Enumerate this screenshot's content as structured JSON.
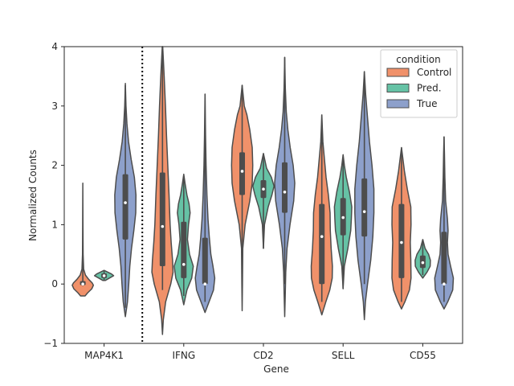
{
  "chart_data": {
    "type": "violin",
    "xlabel": "Gene",
    "ylabel": "Normalized Counts",
    "ylim": [
      -1,
      4
    ],
    "yticks": [
      -1,
      0,
      1,
      2,
      3,
      4
    ],
    "categories": [
      "MAP4K1",
      "IFNG",
      "CD2",
      "SELL",
      "CD55"
    ],
    "separator_after_category": "MAP4K1",
    "legend": {
      "title": "condition",
      "placement": "top-right",
      "entries": [
        "Control",
        "Pred.",
        "True"
      ]
    },
    "series": [
      {
        "name": "Control",
        "color": "#f0916a",
        "violins": [
          {
            "category": "MAP4K1",
            "min": -0.2,
            "max": 1.7,
            "q1": -0.02,
            "median": 0.0,
            "q3": 0.05,
            "whisker_low": -0.03,
            "whisker_high": 0.65,
            "profile": [
              [
                -0.2,
                0.22
              ],
              [
                -0.15,
                0.45
              ],
              [
                -0.08,
                0.85
              ],
              [
                -0.02,
                1.0
              ],
              [
                0.02,
                0.88
              ],
              [
                0.08,
                0.55
              ],
              [
                0.15,
                0.25
              ],
              [
                0.25,
                0.08
              ],
              [
                0.5,
                0.03
              ],
              [
                1.0,
                0.015
              ],
              [
                1.7,
                0.0
              ]
            ]
          },
          {
            "category": "IFNG",
            "min": -0.85,
            "max": 4.0,
            "q1": 0.3,
            "median": 0.97,
            "q3": 1.88,
            "whisker_low": -0.1,
            "whisker_high": 4.0,
            "profile": [
              [
                -0.85,
                0.0
              ],
              [
                -0.6,
                0.08
              ],
              [
                -0.3,
                0.3
              ],
              [
                0.0,
                0.78
              ],
              [
                0.2,
                1.0
              ],
              [
                0.4,
                0.95
              ],
              [
                0.7,
                0.82
              ],
              [
                1.0,
                0.72
              ],
              [
                1.5,
                0.62
              ],
              [
                2.0,
                0.5
              ],
              [
                2.5,
                0.38
              ],
              [
                3.0,
                0.28
              ],
              [
                3.5,
                0.16
              ],
              [
                3.9,
                0.05
              ],
              [
                4.0,
                0.02
              ]
            ]
          },
          {
            "category": "CD2",
            "min": -0.45,
            "max": 3.35,
            "q1": 1.5,
            "median": 1.9,
            "q3": 2.22,
            "whisker_low": 0.0,
            "whisker_high": 3.35,
            "profile": [
              [
                -0.45,
                0.0
              ],
              [
                0.0,
                0.03
              ],
              [
                0.6,
                0.06
              ],
              [
                1.0,
                0.28
              ],
              [
                1.4,
                0.72
              ],
              [
                1.7,
                0.95
              ],
              [
                2.0,
                1.0
              ],
              [
                2.3,
                0.95
              ],
              [
                2.6,
                0.72
              ],
              [
                2.85,
                0.45
              ],
              [
                3.0,
                0.2
              ],
              [
                3.35,
                0.0
              ]
            ]
          },
          {
            "category": "SELL",
            "min": -0.52,
            "max": 2.85,
            "q1": 0.0,
            "median": 0.8,
            "q3": 1.35,
            "whisker_low": -0.3,
            "whisker_high": 2.85,
            "profile": [
              [
                -0.52,
                0.0
              ],
              [
                -0.3,
                0.38
              ],
              [
                -0.1,
                0.75
              ],
              [
                0.1,
                0.98
              ],
              [
                0.3,
                1.0
              ],
              [
                0.6,
                0.88
              ],
              [
                0.9,
                0.8
              ],
              [
                1.2,
                0.78
              ],
              [
                1.5,
                0.62
              ],
              [
                1.8,
                0.4
              ],
              [
                2.1,
                0.25
              ],
              [
                2.4,
                0.1
              ],
              [
                2.85,
                0.0
              ]
            ]
          },
          {
            "category": "CD55",
            "min": -0.42,
            "max": 2.3,
            "q1": 0.1,
            "median": 0.7,
            "q3": 1.35,
            "whisker_low": -0.3,
            "whisker_high": 2.3,
            "profile": [
              [
                -0.42,
                0.0
              ],
              [
                -0.3,
                0.32
              ],
              [
                -0.1,
                0.75
              ],
              [
                0.1,
                0.9
              ],
              [
                0.4,
                0.88
              ],
              [
                0.7,
                0.83
              ],
              [
                1.0,
                0.9
              ],
              [
                1.3,
                0.88
              ],
              [
                1.6,
                0.55
              ],
              [
                1.9,
                0.28
              ],
              [
                2.3,
                0.0
              ]
            ]
          }
        ]
      },
      {
        "name": "Pred.",
        "color": "#66c2a5",
        "violins": [
          {
            "category": "MAP4K1",
            "min": 0.06,
            "max": 0.23,
            "q1": 0.1,
            "median": 0.14,
            "q3": 0.18,
            "whisker_low": 0.06,
            "whisker_high": 0.23,
            "profile": [
              [
                0.06,
                0.12
              ],
              [
                0.1,
                0.5
              ],
              [
                0.14,
                0.9
              ],
              [
                0.17,
                0.7
              ],
              [
                0.2,
                0.35
              ],
              [
                0.23,
                0.0
              ]
            ]
          },
          {
            "category": "IFNG",
            "min": -0.35,
            "max": 1.85,
            "q1": 0.1,
            "median": 0.33,
            "q3": 1.05,
            "whisker_low": -0.2,
            "whisker_high": 1.8,
            "profile": [
              [
                -0.35,
                0.0
              ],
              [
                -0.1,
                0.3
              ],
              [
                0.1,
                0.75
              ],
              [
                0.3,
                0.9
              ],
              [
                0.5,
                0.55
              ],
              [
                0.75,
                0.35
              ],
              [
                1.0,
                0.45
              ],
              [
                1.2,
                0.6
              ],
              [
                1.35,
                0.5
              ],
              [
                1.5,
                0.3
              ],
              [
                1.7,
                0.12
              ],
              [
                1.85,
                0.0
              ]
            ]
          },
          {
            "category": "CD2",
            "min": 0.6,
            "max": 2.2,
            "q1": 1.45,
            "median": 1.6,
            "q3": 1.75,
            "whisker_low": 0.6,
            "whisker_high": 2.2,
            "profile": [
              [
                0.6,
                0.0
              ],
              [
                1.0,
                0.1
              ],
              [
                1.3,
                0.45
              ],
              [
                1.5,
                0.8
              ],
              [
                1.65,
                1.0
              ],
              [
                1.8,
                0.75
              ],
              [
                1.95,
                0.3
              ],
              [
                2.1,
                0.12
              ],
              [
                2.2,
                0.0
              ]
            ]
          },
          {
            "category": "SELL",
            "min": -0.08,
            "max": 2.18,
            "q1": 0.82,
            "median": 1.12,
            "q3": 1.45,
            "whisker_low": -0.08,
            "whisker_high": 2.1,
            "profile": [
              [
                -0.08,
                0.0
              ],
              [
                0.3,
                0.12
              ],
              [
                0.6,
                0.45
              ],
              [
                0.9,
                0.72
              ],
              [
                1.1,
                0.78
              ],
              [
                1.3,
                0.82
              ],
              [
                1.55,
                0.6
              ],
              [
                1.8,
                0.3
              ],
              [
                2.0,
                0.12
              ],
              [
                2.18,
                0.0
              ]
            ]
          },
          {
            "category": "CD55",
            "min": 0.1,
            "max": 0.75,
            "q1": 0.27,
            "median": 0.36,
            "q3": 0.48,
            "whisker_low": 0.15,
            "whisker_high": 0.75,
            "profile": [
              [
                0.1,
                0.0
              ],
              [
                0.2,
                0.4
              ],
              [
                0.3,
                0.7
              ],
              [
                0.4,
                0.72
              ],
              [
                0.5,
                0.55
              ],
              [
                0.6,
                0.22
              ],
              [
                0.75,
                0.0
              ]
            ]
          }
        ]
      },
      {
        "name": "True",
        "color": "#8da0cb",
        "violins": [
          {
            "category": "MAP4K1",
            "min": -0.55,
            "max": 3.38,
            "q1": 0.75,
            "median": 1.37,
            "q3": 1.85,
            "whisker_low": -0.4,
            "whisker_high": 3.35,
            "profile": [
              [
                -0.55,
                0.0
              ],
              [
                -0.3,
                0.2
              ],
              [
                0.0,
                0.32
              ],
              [
                0.3,
                0.42
              ],
              [
                0.6,
                0.58
              ],
              [
                0.9,
                0.8
              ],
              [
                1.2,
                0.98
              ],
              [
                1.5,
                1.0
              ],
              [
                1.8,
                0.85
              ],
              [
                2.1,
                0.55
              ],
              [
                2.4,
                0.3
              ],
              [
                2.7,
                0.15
              ],
              [
                3.0,
                0.06
              ],
              [
                3.38,
                0.0
              ]
            ]
          },
          {
            "category": "IFNG",
            "min": -0.48,
            "max": 3.2,
            "q1": 0.0,
            "median": 0.0,
            "q3": 0.78,
            "whisker_low": -0.3,
            "whisker_high": 3.2,
            "profile": [
              [
                -0.48,
                0.0
              ],
              [
                -0.3,
                0.38
              ],
              [
                -0.1,
                0.8
              ],
              [
                0.1,
                0.92
              ],
              [
                0.3,
                0.75
              ],
              [
                0.5,
                0.55
              ],
              [
                0.8,
                0.4
              ],
              [
                1.1,
                0.28
              ],
              [
                1.5,
                0.18
              ],
              [
                2.0,
                0.1
              ],
              [
                2.5,
                0.05
              ],
              [
                3.2,
                0.0
              ]
            ]
          },
          {
            "category": "CD2",
            "min": -0.55,
            "max": 3.82,
            "q1": 1.2,
            "median": 1.55,
            "q3": 2.05,
            "whisker_low": 0.0,
            "whisker_high": 3.82,
            "profile": [
              [
                -0.55,
                0.0
              ],
              [
                -0.2,
                0.05
              ],
              [
                0.2,
                0.1
              ],
              [
                0.6,
                0.22
              ],
              [
                1.0,
                0.5
              ],
              [
                1.4,
                0.85
              ],
              [
                1.7,
                0.95
              ],
              [
                2.0,
                0.8
              ],
              [
                2.3,
                0.52
              ],
              [
                2.6,
                0.3
              ],
              [
                2.9,
                0.15
              ],
              [
                3.3,
                0.06
              ],
              [
                3.82,
                0.0
              ]
            ]
          },
          {
            "category": "SELL",
            "min": -0.6,
            "max": 3.58,
            "q1": 0.8,
            "median": 1.22,
            "q3": 1.78,
            "whisker_low": 0.0,
            "whisker_high": 3.58,
            "profile": [
              [
                -0.6,
                0.0
              ],
              [
                -0.3,
                0.1
              ],
              [
                0.0,
                0.3
              ],
              [
                0.4,
                0.6
              ],
              [
                0.8,
                0.8
              ],
              [
                1.2,
                0.9
              ],
              [
                1.6,
                0.9
              ],
              [
                2.0,
                0.72
              ],
              [
                2.4,
                0.48
              ],
              [
                2.8,
                0.3
              ],
              [
                3.2,
                0.12
              ],
              [
                3.58,
                0.0
              ]
            ]
          },
          {
            "category": "CD55",
            "min": -0.42,
            "max": 2.48,
            "q1": 0.0,
            "median": 0.0,
            "q3": 0.88,
            "whisker_low": -0.3,
            "whisker_high": 2.48,
            "profile": [
              [
                -0.42,
                0.0
              ],
              [
                -0.3,
                0.35
              ],
              [
                -0.1,
                0.82
              ],
              [
                0.1,
                0.88
              ],
              [
                0.3,
                0.62
              ],
              [
                0.5,
                0.38
              ],
              [
                0.7,
                0.32
              ],
              [
                0.9,
                0.38
              ],
              [
                1.1,
                0.32
              ],
              [
                1.4,
                0.15
              ],
              [
                1.8,
                0.08
              ],
              [
                2.2,
                0.04
              ],
              [
                2.48,
                0.0
              ]
            ]
          }
        ]
      }
    ]
  }
}
